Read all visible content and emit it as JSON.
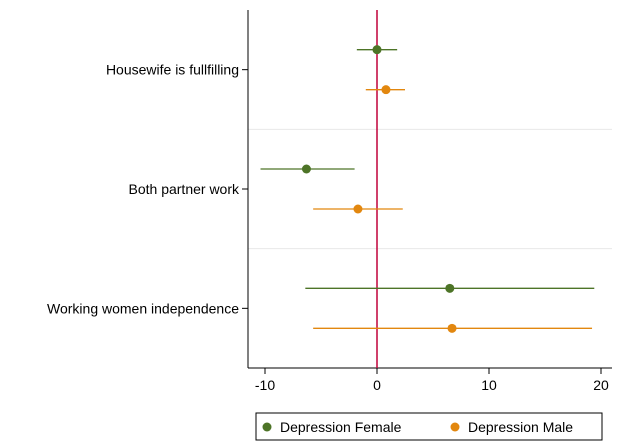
{
  "chart_data": {
    "type": "coefficient-plot",
    "title": "",
    "xlabel": "",
    "ylabel": "",
    "xlim": [
      -11.5,
      21
    ],
    "x_ticks": [
      -10,
      0,
      10,
      20
    ],
    "x_tick_labels": [
      "-10",
      "0",
      "10",
      "20"
    ],
    "reference_line": {
      "x": 0,
      "color": "#c1003a"
    },
    "categories": [
      "Housewife is fullfilling",
      "Both partner work",
      "Working women independence"
    ],
    "series": [
      {
        "name": "Depression Female",
        "color": "#4d7427",
        "estimates": [
          0,
          -6.3,
          6.5
        ],
        "ci_low": [
          -1.8,
          -10.4,
          -6.4
        ],
        "ci_high": [
          1.8,
          -2.0,
          19.4
        ]
      },
      {
        "name": "Depression Male",
        "color": "#e2870f",
        "estimates": [
          0.8,
          -1.7,
          6.7
        ],
        "ci_low": [
          -1.0,
          -5.7,
          -5.7
        ],
        "ci_high": [
          2.5,
          2.3,
          19.2
        ]
      }
    ],
    "grid": "horizontal separators between categories",
    "legend": {
      "position": "bottom"
    }
  }
}
